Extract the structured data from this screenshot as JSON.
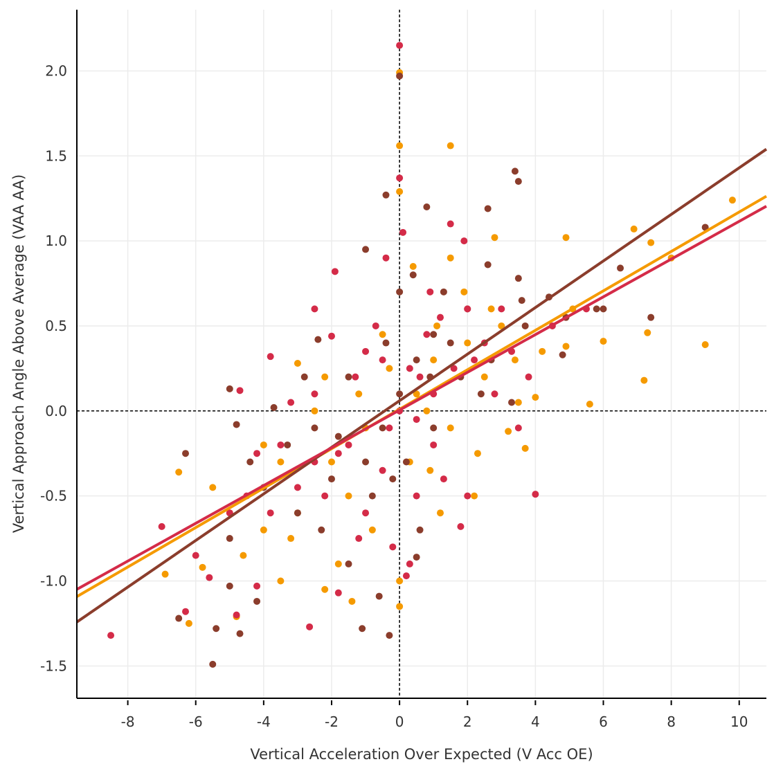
{
  "chart_data": {
    "type": "scatter",
    "title": "",
    "xlabel": "Vertical Acceleration Over Expected (V Acc OE)",
    "ylabel": "Vertical Approach Angle Above Average (VAA AA)",
    "xlim": [
      -9.5,
      10.8
    ],
    "ylim": [
      -1.69,
      2.36
    ],
    "x_ticks": [
      -8,
      -6,
      -4,
      -2,
      0,
      2,
      4,
      6,
      8,
      10
    ],
    "x_tick_labels": [
      "-8",
      "-6",
      "-4",
      "-2",
      "0",
      "2",
      "4",
      "6",
      "8",
      "10"
    ],
    "y_ticks": [
      -1.5,
      -1.0,
      -0.5,
      0.0,
      0.5,
      1.0,
      1.5,
      2.0
    ],
    "y_tick_labels": [
      "-1.5",
      "-1.0",
      "-0.5",
      "0.0",
      "0.5",
      "1.0",
      "1.5",
      "2.0"
    ],
    "grid": true,
    "reference_lines": {
      "x": 0,
      "y": 0,
      "style": "dotted"
    },
    "series": [
      {
        "name": "orange",
        "color": "#f59a00",
        "trend": {
          "slope": 0.116,
          "intercept": 0.01
        },
        "points": [
          [
            0,
            1.99
          ],
          [
            0,
            1.56
          ],
          [
            1.5,
            1.56
          ],
          [
            0,
            1.29
          ],
          [
            9.8,
            1.24
          ],
          [
            6.9,
            1.07
          ],
          [
            4.9,
            1.02
          ],
          [
            7.4,
            0.99
          ],
          [
            2.8,
            1.02
          ],
          [
            8.0,
            0.9
          ],
          [
            6.0,
            0.41
          ],
          [
            7.3,
            0.46
          ],
          [
            9.0,
            0.39
          ],
          [
            7.2,
            0.18
          ],
          [
            5.6,
            0.04
          ],
          [
            4.0,
            0.08
          ],
          [
            3.7,
            -0.22
          ],
          [
            -6.5,
            -0.36
          ],
          [
            -6.9,
            -0.96
          ],
          [
            -6.2,
            -1.25
          ],
          [
            -4.6,
            -0.85
          ],
          [
            -3.5,
            -1.0
          ],
          [
            -2.2,
            -1.05
          ],
          [
            -1.4,
            -1.12
          ],
          [
            0,
            -1.15
          ],
          [
            0,
            -1.0
          ],
          [
            -5.8,
            -0.92
          ],
          [
            -4.8,
            -1.21
          ],
          [
            -3.0,
            -0.6
          ],
          [
            -2.0,
            -0.3
          ],
          [
            -1.0,
            -0.1
          ],
          [
            0.5,
            0.1
          ],
          [
            1.0,
            0.3
          ],
          [
            2.0,
            0.4
          ],
          [
            3.0,
            0.5
          ],
          [
            2.5,
            0.2
          ],
          [
            1.5,
            -0.1
          ],
          [
            0.3,
            -0.3
          ],
          [
            -1.5,
            -0.5
          ],
          [
            -2.5,
            0.0
          ],
          [
            -3.5,
            -0.3
          ],
          [
            -4.0,
            -0.7
          ],
          [
            -4.0,
            -0.2
          ],
          [
            -5.0,
            -0.6
          ],
          [
            -5.5,
            -0.45
          ],
          [
            -3.0,
            0.28
          ],
          [
            -2.2,
            0.2
          ],
          [
            -0.5,
            0.45
          ],
          [
            0.4,
            0.85
          ],
          [
            1.1,
            0.5
          ],
          [
            1.9,
            0.7
          ],
          [
            2.7,
            0.6
          ],
          [
            3.4,
            0.3
          ],
          [
            4.2,
            0.35
          ],
          [
            5.1,
            0.6
          ],
          [
            4.9,
            0.38
          ],
          [
            3.5,
            0.05
          ],
          [
            2.3,
            -0.25
          ],
          [
            1.2,
            -0.6
          ],
          [
            -0.8,
            -0.7
          ],
          [
            -1.8,
            -0.9
          ],
          [
            -3.2,
            -0.75
          ],
          [
            -0.3,
            0.25
          ],
          [
            0.8,
            0.0
          ],
          [
            -1.2,
            0.1
          ],
          [
            2.2,
            -0.5
          ],
          [
            3.2,
            -0.12
          ],
          [
            1.5,
            0.9
          ],
          [
            0.9,
            -0.35
          ]
        ]
      },
      {
        "name": "brown",
        "color": "#8b3d2c",
        "trend": {
          "slope": 0.137,
          "intercept": 0.06
        },
        "points": [
          [
            0,
            1.97
          ],
          [
            3.4,
            1.41
          ],
          [
            3.5,
            1.35
          ],
          [
            2.6,
            1.19
          ],
          [
            0.8,
            1.2
          ],
          [
            -0.4,
            1.27
          ],
          [
            9.0,
            1.08
          ],
          [
            7.4,
            0.55
          ],
          [
            6.5,
            0.84
          ],
          [
            4.8,
            0.33
          ],
          [
            6.0,
            0.6
          ],
          [
            -5.5,
            -1.49
          ],
          [
            -5.4,
            -1.28
          ],
          [
            -6.5,
            -1.22
          ],
          [
            -4.7,
            -1.31
          ],
          [
            -1.1,
            -1.28
          ],
          [
            -0.3,
            -1.32
          ],
          [
            -4.2,
            -1.12
          ],
          [
            0.5,
            -0.86
          ],
          [
            -5.0,
            -1.03
          ],
          [
            -6.3,
            -0.25
          ],
          [
            -4.8,
            -0.08
          ],
          [
            -5.0,
            0.13
          ],
          [
            -3.7,
            0.02
          ],
          [
            -2.4,
            0.42
          ],
          [
            -1.0,
            0.95
          ],
          [
            0,
            0.7
          ],
          [
            0.4,
            0.8
          ],
          [
            2.6,
            0.86
          ],
          [
            3.6,
            0.65
          ],
          [
            4.4,
            0.67
          ],
          [
            4.9,
            0.55
          ],
          [
            5.8,
            0.6
          ],
          [
            3.5,
            0.78
          ],
          [
            2.0,
            0.6
          ],
          [
            1.0,
            0.45
          ],
          [
            0.5,
            0.3
          ],
          [
            0,
            0.1
          ],
          [
            -0.5,
            -0.1
          ],
          [
            -1.0,
            -0.3
          ],
          [
            -2.0,
            -0.4
          ],
          [
            -3.0,
            -0.6
          ],
          [
            -4.0,
            -0.45
          ],
          [
            -5.0,
            -0.75
          ],
          [
            -2.3,
            -0.7
          ],
          [
            -1.5,
            -0.9
          ],
          [
            -0.8,
            -0.5
          ],
          [
            0.2,
            -0.3
          ],
          [
            1.0,
            -0.1
          ],
          [
            1.8,
            0.2
          ],
          [
            2.7,
            0.3
          ],
          [
            3.3,
            0.05
          ],
          [
            1.5,
            0.4
          ],
          [
            -0.4,
            0.4
          ],
          [
            -1.5,
            0.2
          ],
          [
            -2.5,
            -0.1
          ],
          [
            -3.3,
            -0.2
          ],
          [
            0.6,
            -0.7
          ],
          [
            -0.6,
            -1.09
          ],
          [
            1.3,
            0.7
          ],
          [
            2.4,
            0.1
          ],
          [
            -1.8,
            -0.15
          ],
          [
            0.9,
            0.2
          ],
          [
            -0.2,
            -0.4
          ],
          [
            3.7,
            0.5
          ],
          [
            -2.8,
            0.2
          ],
          [
            -4.4,
            -0.3
          ]
        ]
      },
      {
        "name": "red",
        "color": "#d42b48",
        "trend": {
          "slope": 0.111,
          "intercept": 0.005
        },
        "points": [
          [
            0,
            2.15
          ],
          [
            -8.5,
            -1.32
          ],
          [
            4.0,
            -0.49
          ],
          [
            0,
            1.37
          ],
          [
            -1.9,
            0.82
          ],
          [
            -3.8,
            0.32
          ],
          [
            -4.7,
            0.12
          ],
          [
            -7.0,
            -0.68
          ],
          [
            -6.3,
            -1.18
          ],
          [
            -4.8,
            -1.2
          ],
          [
            -2.65,
            -1.27
          ],
          [
            -1.8,
            -1.07
          ],
          [
            0.2,
            -0.97
          ],
          [
            1.5,
            1.1
          ],
          [
            1.9,
            1.0
          ],
          [
            0.1,
            1.05
          ],
          [
            -0.4,
            0.9
          ],
          [
            -2.5,
            0.6
          ],
          [
            -2.0,
            0.44
          ],
          [
            -1.0,
            0.35
          ],
          [
            -0.5,
            0.3
          ],
          [
            0.3,
            0.25
          ],
          [
            0.8,
            0.45
          ],
          [
            1.2,
            0.55
          ],
          [
            2.0,
            0.6
          ],
          [
            2.5,
            0.4
          ],
          [
            3.3,
            0.35
          ],
          [
            3.8,
            0.2
          ],
          [
            1.0,
            0.1
          ],
          [
            0.5,
            -0.05
          ],
          [
            -0.3,
            -0.1
          ],
          [
            -1.5,
            -0.2
          ],
          [
            -2.5,
            -0.3
          ],
          [
            -3.5,
            -0.2
          ],
          [
            -4.2,
            -0.25
          ],
          [
            -5.0,
            -0.6
          ],
          [
            -5.6,
            -0.98
          ],
          [
            -4.2,
            -1.03
          ],
          [
            -1.0,
            -0.6
          ],
          [
            -0.2,
            -0.8
          ],
          [
            0.5,
            -0.5
          ],
          [
            1.3,
            -0.4
          ],
          [
            2.0,
            -0.5
          ],
          [
            1.8,
            -0.68
          ],
          [
            0.3,
            -0.9
          ],
          [
            -2.2,
            -0.5
          ],
          [
            -3.0,
            -0.45
          ],
          [
            -3.8,
            -0.6
          ],
          [
            2.8,
            0.1
          ],
          [
            1.6,
            0.25
          ],
          [
            0.9,
            0.7
          ],
          [
            -1.2,
            -0.75
          ],
          [
            -2.5,
            0.1
          ],
          [
            -3.2,
            0.05
          ],
          [
            -1.8,
            -0.25
          ],
          [
            3.0,
            0.6
          ],
          [
            4.5,
            0.5
          ],
          [
            5.5,
            0.6
          ],
          [
            -0.7,
            0.5
          ],
          [
            0.6,
            0.2
          ],
          [
            -0.5,
            -0.35
          ],
          [
            0.0,
            0.0
          ],
          [
            1.0,
            -0.2
          ],
          [
            -1.3,
            0.2
          ],
          [
            2.2,
            0.3
          ],
          [
            -6.0,
            -0.85
          ],
          [
            -4.5,
            -0.5
          ],
          [
            3.5,
            -0.1
          ]
        ]
      }
    ]
  }
}
